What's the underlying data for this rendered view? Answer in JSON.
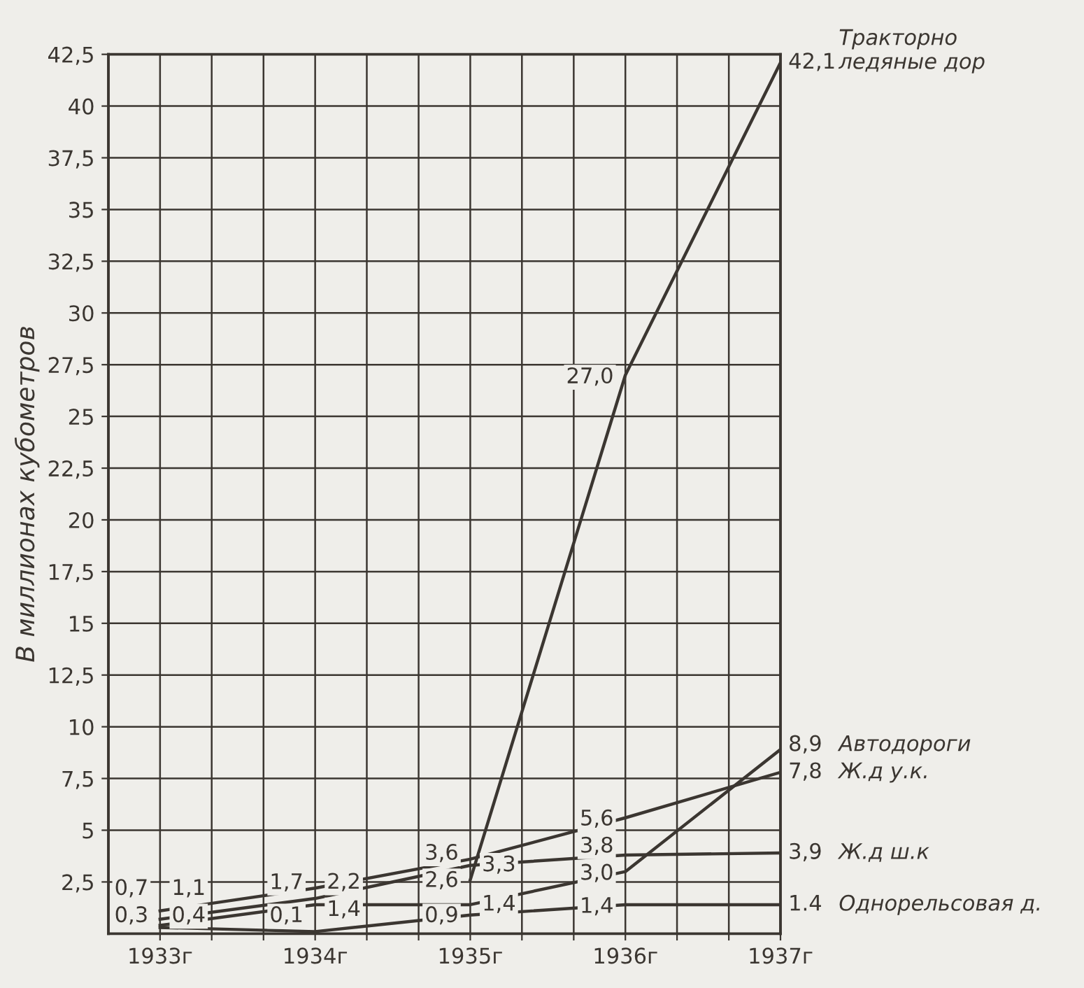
{
  "chart_data": {
    "type": "line",
    "ylabel": "В миллионах кубометров",
    "x": [
      1933,
      1934,
      1935,
      1936,
      1937
    ],
    "xlim": [
      1932.667,
      1937
    ],
    "xticks": [
      {
        "value": 1933,
        "label": "1933г"
      },
      {
        "value": 1933.333,
        "label": null
      },
      {
        "value": 1933.667,
        "label": null
      },
      {
        "value": 1934,
        "label": "1934г"
      },
      {
        "value": 1934.333,
        "label": null
      },
      {
        "value": 1934.667,
        "label": null
      },
      {
        "value": 1935,
        "label": "1935г"
      },
      {
        "value": 1935.333,
        "label": null
      },
      {
        "value": 1935.667,
        "label": null
      },
      {
        "value": 1936,
        "label": "1936г"
      },
      {
        "value": 1936.333,
        "label": null
      },
      {
        "value": 1936.667,
        "label": null
      },
      {
        "value": 1937,
        "label": "1937г"
      }
    ],
    "ylim": [
      0,
      42.5
    ],
    "yticks": [
      {
        "value": 2.5,
        "label": "2,5"
      },
      5,
      {
        "value": 7.5,
        "label": "7,5"
      },
      10,
      {
        "value": 12.5,
        "label": "12,5"
      },
      15,
      {
        "value": 17.5,
        "label": "17,5"
      },
      20,
      {
        "value": 22.5,
        "label": "22,5"
      },
      25,
      {
        "value": 27.5,
        "label": "27,5"
      },
      30,
      {
        "value": 32.5,
        "label": "32,5"
      },
      35,
      {
        "value": 37.5,
        "label": "37,5"
      },
      40,
      {
        "value": 42.5,
        "label": "42,5"
      }
    ],
    "grid": true,
    "marker": "none",
    "line_style": "solid",
    "legend": false,
    "series": [
      {
        "name": "Тракторно\nледяные дор",
        "color": "#3b3631",
        "values": [
          null,
          null,
          2.6,
          27.0,
          42.1
        ],
        "value_labels": [
          null,
          null,
          "2,6",
          "27,0",
          "42,1"
        ]
      },
      {
        "name": "Автодороги",
        "color": "#3b3631",
        "values": [
          0.4,
          1.4,
          1.4,
          3.0,
          8.9
        ],
        "value_labels": [
          "0,4",
          "1,4",
          "1,4",
          "3,0",
          "8,9"
        ]
      },
      {
        "name": "Ж.д у.к.",
        "color": "#3b3631",
        "values": [
          1.1,
          2.2,
          3.6,
          5.6,
          7.8
        ],
        "value_labels": [
          "1,1",
          "2,2",
          "3,6",
          "5,6",
          "7,8"
        ]
      },
      {
        "name": "Ж.д ш.к",
        "color": "#3b3631",
        "values": [
          0.7,
          1.7,
          3.3,
          3.8,
          3.9
        ],
        "value_labels": [
          "0,7",
          "1,7",
          "3,3",
          "3,8",
          "3,9"
        ]
      },
      {
        "name": "Однорельсовая д.",
        "color": "#3b3631",
        "values": [
          0.3,
          0.1,
          0.9,
          1.4,
          1.4
        ],
        "value_labels": [
          "0,3",
          "0,1",
          "0,9",
          "1,4",
          "1.4"
        ]
      }
    ]
  }
}
